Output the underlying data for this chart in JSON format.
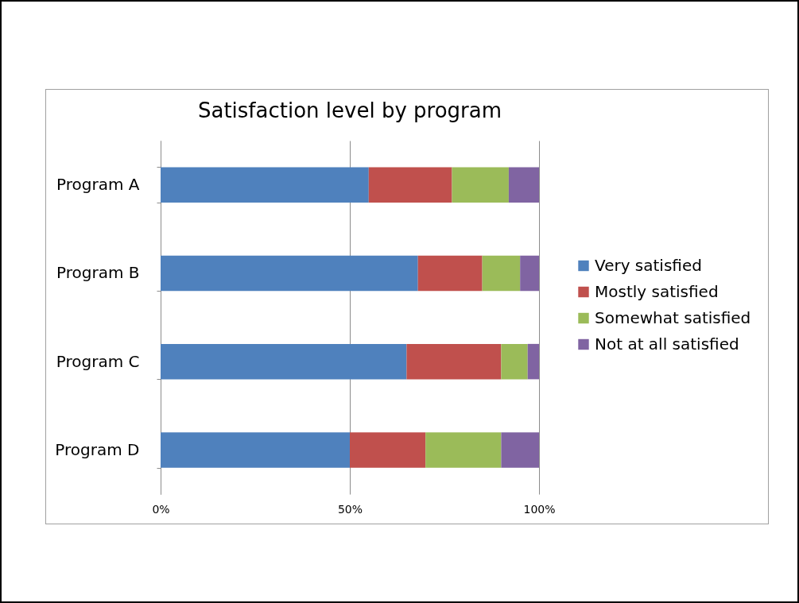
{
  "chart_data": {
    "type": "bar",
    "title": "Satisfaction level by program",
    "orientation": "horizontal",
    "stacked": true,
    "categories": [
      "Program A",
      "Program B",
      "Program C",
      "Program D"
    ],
    "series": [
      {
        "name": "Very satisfied",
        "color": "#4f81bd",
        "values": [
          55,
          68,
          65,
          50
        ]
      },
      {
        "name": "Mostly satisfied",
        "color": "#c0504d",
        "values": [
          22,
          17,
          25,
          20
        ]
      },
      {
        "name": "Somewhat satisfied",
        "color": "#9bbb59",
        "values": [
          15,
          10,
          7,
          20
        ]
      },
      {
        "name": "Not at all satisfied",
        "color": "#8064a2",
        "values": [
          8,
          5,
          3,
          10
        ]
      }
    ],
    "xlim": [
      0,
      100
    ],
    "xticks": [
      {
        "value": 0,
        "label": "0%"
      },
      {
        "value": 50,
        "label": "50%"
      },
      {
        "value": 100,
        "label": "100%"
      }
    ],
    "grid": "x",
    "legend": "right"
  }
}
